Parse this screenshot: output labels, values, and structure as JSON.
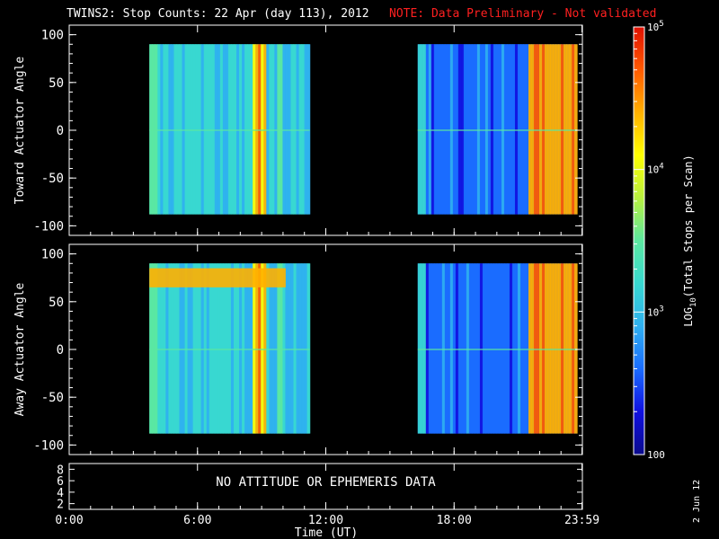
{
  "title": "TWINS2: Stop Counts: 22 Apr (day 113), 2012",
  "note": "NOTE: Data Preliminary - Not validated",
  "date_stamp": "2 Jun 12",
  "no_data_message": "NO ATTITUDE OR EPHEMERIS DATA",
  "colors": {
    "background": "#000000",
    "axes": "#ffffff",
    "note": "#ff2020",
    "scale": [
      "#0b0b8c",
      "#1010e0",
      "#1a6cff",
      "#2fb0f0",
      "#38d8d0",
      "#5ce8a0",
      "#b8f040",
      "#ffff00",
      "#ffb000",
      "#ff5a00",
      "#e01000"
    ]
  },
  "chart_data": [
    {
      "type": "heatmap",
      "ylabel": "Toward Actuator Angle",
      "ylim": [
        -110,
        110
      ],
      "yticks": [
        "100",
        "50",
        "0",
        "-50",
        "-100"
      ],
      "x_range_hours": [
        0,
        24
      ],
      "data_intervals_hours": [
        [
          3.75,
          11.25
        ],
        [
          16.3,
          23.75
        ]
      ],
      "angle_extent": [
        -88,
        90
      ]
    },
    {
      "type": "heatmap",
      "ylabel": "Away Actuator Angle",
      "ylim": [
        -110,
        110
      ],
      "yticks": [
        "100",
        "50",
        "0",
        "-50",
        "-100"
      ],
      "x_range_hours": [
        0,
        24
      ],
      "data_intervals_hours": [
        [
          3.75,
          11.25
        ],
        [
          16.3,
          23.75
        ]
      ],
      "angle_extent": [
        -88,
        90
      ]
    },
    {
      "type": "line",
      "ylim": [
        1,
        9
      ],
      "yticks": [
        "8",
        "6",
        "4",
        "2"
      ],
      "xlabel": "Time (UT)",
      "xticks": [
        "0:00",
        "6:00",
        "12:00",
        "18:00",
        "23:59"
      ],
      "x_tick_hours": [
        0,
        6,
        12,
        18,
        23.98
      ]
    }
  ],
  "colorbar": {
    "label": "LOG10(Total Stops per Scan)",
    "label_main": "LOG",
    "label_sub": "10",
    "label_rest": "(Total Stops per Scan)",
    "scale": "log",
    "range": [
      100,
      100000
    ],
    "ticks": [
      {
        "value": 100000,
        "base": "10",
        "exp": "5"
      },
      {
        "value": 10000,
        "base": "10",
        "exp": "4"
      },
      {
        "value": 1000,
        "base": "10",
        "exp": "3"
      },
      {
        "value": 100,
        "text": "100"
      }
    ]
  }
}
